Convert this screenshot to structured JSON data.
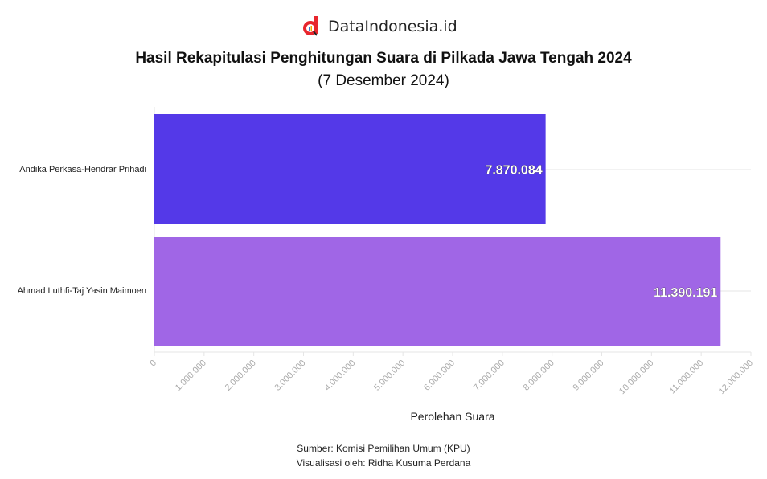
{
  "brand": "DataIndonesia.id",
  "colors": {
    "bar1": "#5439e8",
    "bar2": "#a066e6",
    "logo": "#e8262d"
  },
  "chart_data": {
    "type": "bar",
    "orientation": "horizontal",
    "title": "Hasil Rekapitulasi Penghitungan Suara di Pilkada Jawa Tengah 2024",
    "subtitle": "(7 Desember 2024)",
    "categories": [
      "Andika Perkasa-Hendrar Prihadi",
      "Ahmad Luthfi-Taj Yasin Maimoen"
    ],
    "values": [
      7870084,
      11390191
    ],
    "value_labels": [
      "7.870.084",
      "11.390.191"
    ],
    "xlabel": "Perolehan Suara",
    "xlim": [
      0,
      12000000
    ],
    "xticks": [
      0,
      1000000,
      2000000,
      3000000,
      4000000,
      5000000,
      6000000,
      7000000,
      8000000,
      9000000,
      10000000,
      11000000,
      12000000
    ],
    "xtick_labels": [
      "0",
      "1.000.000",
      "2.000.000",
      "3.000.000",
      "4.000.000",
      "5.000.000",
      "6.000.000",
      "7.000.000",
      "8.000.000",
      "9.000.000",
      "10.000.000",
      "11.000.000",
      "12.000.000"
    ],
    "grid": true
  },
  "footer": {
    "source": "Sumber: Komisi Pemilihan Umum (KPU)",
    "credit": "Visualisasi oleh: Ridha Kusuma Perdana"
  }
}
